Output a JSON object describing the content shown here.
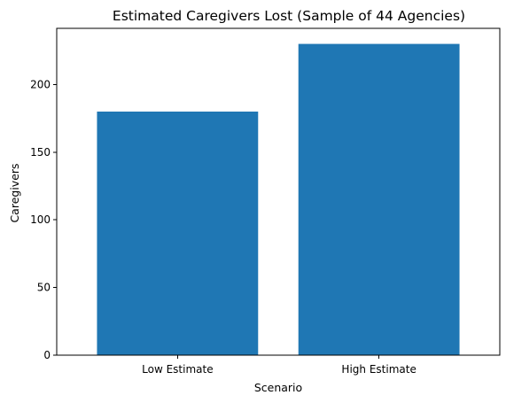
{
  "chart_data": {
    "type": "bar",
    "title": "Estimated Caregivers Lost (Sample of 44 Agencies)",
    "xlabel": "Scenario",
    "ylabel": "Caregivers",
    "categories": [
      "Low Estimate",
      "High Estimate"
    ],
    "values": [
      180,
      230
    ],
    "ylim": [
      0,
      241.5
    ],
    "yticks": [
      0,
      50,
      100,
      150,
      200
    ],
    "bar_color": "#1f77b4",
    "grid": false,
    "legend": "none"
  }
}
